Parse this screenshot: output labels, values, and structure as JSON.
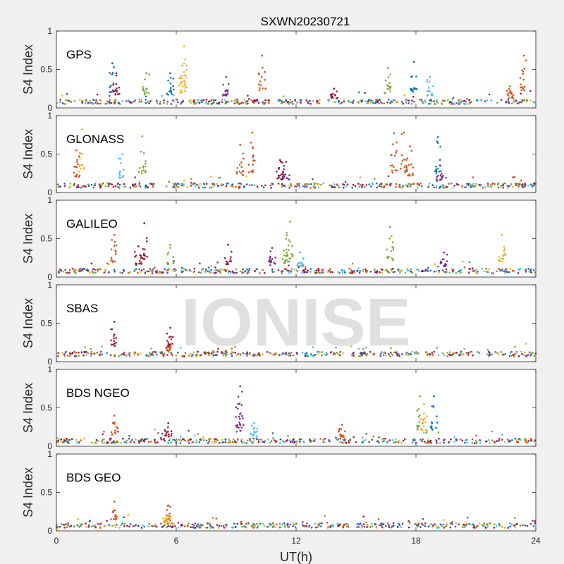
{
  "chart_data": {
    "type": "scatter",
    "title": "SXWN20230721",
    "xlabel": "UT(h)",
    "ylabel": "S4 Index",
    "xlim": [
      0,
      24
    ],
    "ylim": [
      0,
      1
    ],
    "xticks": [
      "0",
      "6",
      "12",
      "18",
      "24"
    ],
    "yticks": [
      "0",
      "0.5",
      "1"
    ],
    "watermark": "IONISE",
    "colors": [
      "#0072BD",
      "#D95319",
      "#EDB120",
      "#7E2F8E",
      "#77AC30",
      "#4DBEEE",
      "#A2142F"
    ],
    "panels": [
      {
        "name": "GPS",
        "baseline": 0.08,
        "peaks": [
          {
            "x": 2.8,
            "y": 0.58,
            "c": 0
          },
          {
            "x": 3.0,
            "y": 0.45,
            "c": 6
          },
          {
            "x": 4.5,
            "y": 0.45,
            "c": 4
          },
          {
            "x": 5.7,
            "y": 0.45,
            "c": 0
          },
          {
            "x": 6.4,
            "y": 0.8,
            "c": 2
          },
          {
            "x": 6.3,
            "y": 0.55,
            "c": 2
          },
          {
            "x": 8.5,
            "y": 0.4,
            "c": 3
          },
          {
            "x": 10.3,
            "y": 0.68,
            "c": 1
          },
          {
            "x": 13.9,
            "y": 0.25,
            "c": 6
          },
          {
            "x": 16.6,
            "y": 0.52,
            "c": 4
          },
          {
            "x": 17.9,
            "y": 0.6,
            "c": 0
          },
          {
            "x": 18.7,
            "y": 0.4,
            "c": 5
          },
          {
            "x": 22.7,
            "y": 0.28,
            "c": 1
          },
          {
            "x": 23.4,
            "y": 0.68,
            "c": 1
          }
        ]
      },
      {
        "name": "GLONASS",
        "baseline": 0.09,
        "peaks": [
          {
            "x": 1.3,
            "y": 0.82,
            "c": 2
          },
          {
            "x": 1.0,
            "y": 0.55,
            "c": 1
          },
          {
            "x": 3.3,
            "y": 0.5,
            "c": 5
          },
          {
            "x": 4.3,
            "y": 0.73,
            "c": 4
          },
          {
            "x": 9.2,
            "y": 0.62,
            "c": 1
          },
          {
            "x": 9.8,
            "y": 0.78,
            "c": 1
          },
          {
            "x": 11.2,
            "y": 0.42,
            "c": 6
          },
          {
            "x": 11.5,
            "y": 0.4,
            "c": 3
          },
          {
            "x": 16.9,
            "y": 0.77,
            "c": 1
          },
          {
            "x": 17.4,
            "y": 0.78,
            "c": 1
          },
          {
            "x": 17.7,
            "y": 0.6,
            "c": 1
          },
          {
            "x": 19.1,
            "y": 0.72,
            "c": 0
          },
          {
            "x": 19.2,
            "y": 0.35,
            "c": 3
          }
        ]
      },
      {
        "name": "GALILEO",
        "baseline": 0.08,
        "peaks": [
          {
            "x": 2.9,
            "y": 0.55,
            "c": 1
          },
          {
            "x": 4.4,
            "y": 0.7,
            "c": 6
          },
          {
            "x": 4.1,
            "y": 0.4,
            "c": 6
          },
          {
            "x": 5.7,
            "y": 0.42,
            "c": 4
          },
          {
            "x": 8.6,
            "y": 0.42,
            "c": 6
          },
          {
            "x": 10.8,
            "y": 0.38,
            "c": 3
          },
          {
            "x": 11.7,
            "y": 0.72,
            "c": 4
          },
          {
            "x": 11.5,
            "y": 0.5,
            "c": 4
          },
          {
            "x": 12.2,
            "y": 0.32,
            "c": 5
          },
          {
            "x": 16.7,
            "y": 0.65,
            "c": 4
          },
          {
            "x": 19.4,
            "y": 0.32,
            "c": 3
          },
          {
            "x": 22.3,
            "y": 0.55,
            "c": 2
          }
        ]
      },
      {
        "name": "SBAS",
        "baseline": 0.1,
        "peaks": [
          {
            "x": 2.9,
            "y": 0.52,
            "c": 6
          },
          {
            "x": 5.7,
            "y": 0.44,
            "c": 6
          },
          {
            "x": 5.6,
            "y": 0.25,
            "c": 1
          }
        ]
      },
      {
        "name": "BDS NGEO",
        "baseline": 0.07,
        "peaks": [
          {
            "x": 2.9,
            "y": 0.4,
            "c": 1
          },
          {
            "x": 5.6,
            "y": 0.3,
            "c": 6
          },
          {
            "x": 9.2,
            "y": 0.78,
            "c": 3
          },
          {
            "x": 9.1,
            "y": 0.55,
            "c": 3
          },
          {
            "x": 9.9,
            "y": 0.3,
            "c": 5
          },
          {
            "x": 14.3,
            "y": 0.28,
            "c": 1
          },
          {
            "x": 18.2,
            "y": 0.65,
            "c": 4
          },
          {
            "x": 18.4,
            "y": 0.55,
            "c": 2
          },
          {
            "x": 18.9,
            "y": 0.65,
            "c": 0
          }
        ]
      },
      {
        "name": "BDS GEO",
        "baseline": 0.07,
        "peaks": [
          {
            "x": 2.9,
            "y": 0.38,
            "c": 1
          },
          {
            "x": 5.6,
            "y": 0.33,
            "c": 1
          },
          {
            "x": 5.5,
            "y": 0.2,
            "c": 2
          }
        ]
      }
    ]
  }
}
